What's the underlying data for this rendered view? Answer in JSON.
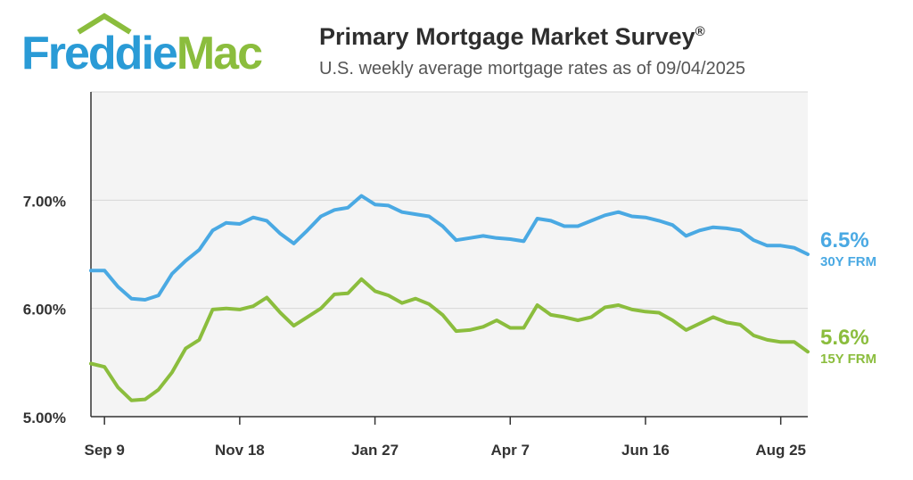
{
  "logo": {
    "part1": "Freddie",
    "part2": "Mac"
  },
  "header": {
    "title": "Primary Mortgage Market Survey",
    "title_mark": "®",
    "subtitle": "U.S. weekly average mortgage rates as of 09/04/2025"
  },
  "colors": {
    "frm30": "#4aa9e3",
    "frm15": "#8bbd3d",
    "plot_bg": "#f4f4f4",
    "grid": "#d6d6d6",
    "axis": "#333333"
  },
  "chart_data": {
    "type": "line",
    "title": "Primary Mortgage Market Survey",
    "subtitle": "U.S. weekly average mortgage rates as of 09/04/2025",
    "ylim": [
      5.0,
      8.0
    ],
    "yticks": [
      5.0,
      6.0,
      7.0
    ],
    "ytick_labels": [
      "5.00%",
      "6.00%",
      "7.00%"
    ],
    "grid": true,
    "x_tick_labels": [
      "Sep 9",
      "Nov 18",
      "Jan 27",
      "Apr 7",
      "Jun 16",
      "Aug 25"
    ],
    "x_tick_weeks": [
      1,
      11,
      21,
      31,
      41,
      51
    ],
    "series": [
      {
        "name": "30Y FRM",
        "end_label": "6.5%",
        "values": [
          6.35,
          6.35,
          6.2,
          6.09,
          6.08,
          6.12,
          6.32,
          6.44,
          6.54,
          6.72,
          6.79,
          6.78,
          6.84,
          6.81,
          6.69,
          6.6,
          6.72,
          6.85,
          6.91,
          6.93,
          7.04,
          6.96,
          6.95,
          6.89,
          6.87,
          6.85,
          6.76,
          6.63,
          6.65,
          6.67,
          6.65,
          6.64,
          6.62,
          6.83,
          6.81,
          6.76,
          6.76,
          6.81,
          6.86,
          6.89,
          6.85,
          6.84,
          6.81,
          6.77,
          6.67,
          6.72,
          6.75,
          6.74,
          6.72,
          6.63,
          6.58,
          6.58,
          6.56,
          6.5
        ]
      },
      {
        "name": "15Y FRM",
        "end_label": "5.6%",
        "values": [
          5.49,
          5.46,
          5.27,
          5.15,
          5.16,
          5.25,
          5.41,
          5.63,
          5.71,
          5.99,
          6.0,
          5.99,
          6.02,
          6.1,
          5.96,
          5.84,
          5.92,
          6.0,
          6.13,
          6.14,
          6.27,
          6.16,
          6.12,
          6.05,
          6.09,
          6.04,
          5.94,
          5.79,
          5.8,
          5.83,
          5.89,
          5.82,
          5.82,
          6.03,
          5.94,
          5.92,
          5.89,
          5.92,
          6.01,
          6.03,
          5.99,
          5.97,
          5.96,
          5.89,
          5.8,
          5.86,
          5.92,
          5.87,
          5.85,
          5.75,
          5.71,
          5.69,
          5.69,
          5.6
        ]
      }
    ]
  }
}
